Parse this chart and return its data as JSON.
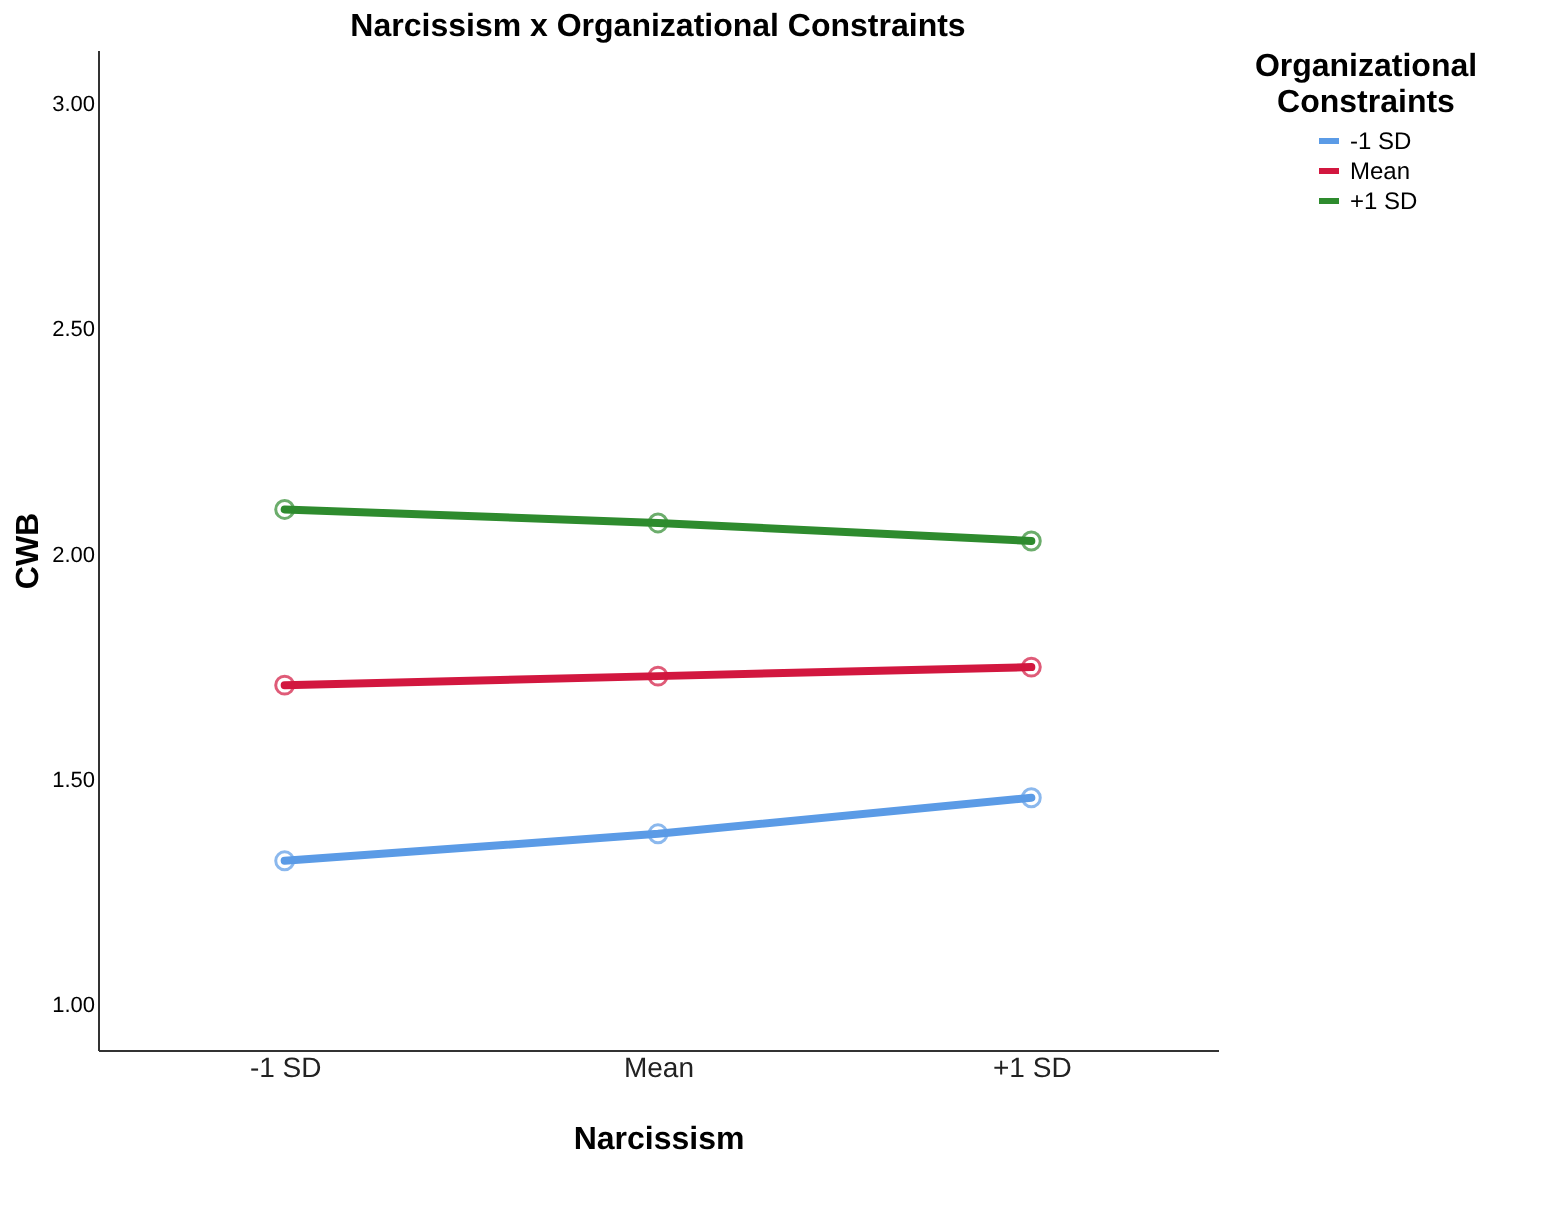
{
  "chart_data": {
    "type": "line",
    "title": "Narcissism x Organizational Constraints",
    "xlabel": "Narcissism",
    "ylabel": "CWB",
    "legend_title": "Organizational Constraints",
    "categories": [
      "-1 SD",
      "Mean",
      "+1 SD"
    ],
    "series": [
      {
        "name": "-1 SD",
        "color": "#5b9be6",
        "values": [
          1.32,
          1.38,
          1.46
        ]
      },
      {
        "name": "Mean",
        "color": "#d2173f",
        "values": [
          1.71,
          1.73,
          1.75
        ]
      },
      {
        "name": "+1 SD",
        "color": "#2e8b2e",
        "values": [
          2.1,
          2.07,
          2.03
        ]
      }
    ],
    "ylim": [
      0.9,
      3.12
    ],
    "yticks": [
      {
        "value": 1,
        "label": "1.00"
      },
      {
        "value": 1.5,
        "label": "1.50"
      },
      {
        "value": 2,
        "label": "2.00"
      },
      {
        "value": 2.5,
        "label": "2.50"
      },
      {
        "value": 3,
        "label": "3.00"
      }
    ],
    "grid": false,
    "legend": "top right",
    "marker": "circle",
    "line_style": "solid"
  }
}
